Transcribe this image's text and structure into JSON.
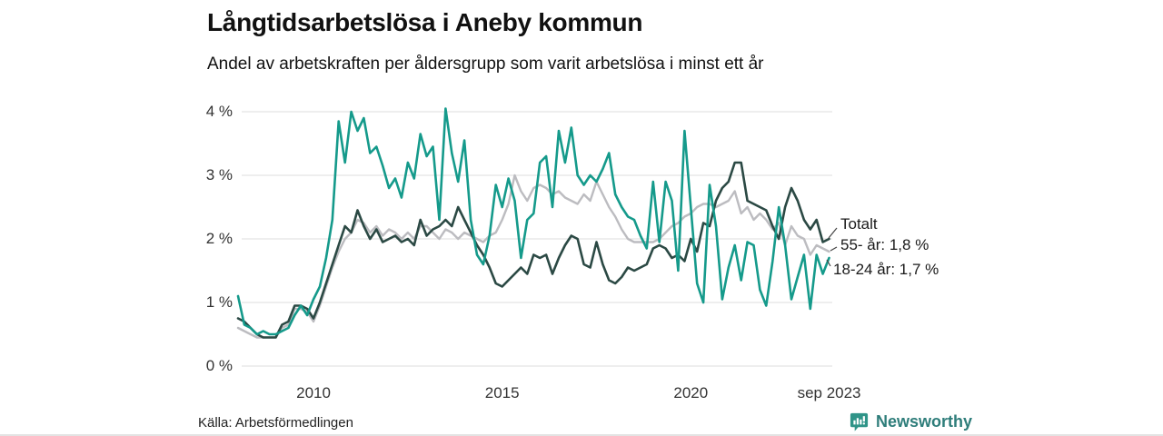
{
  "header": {
    "title": "Långtidsarbetslösa i Aneby kommun",
    "subtitle": "Andel av arbetskraften per åldersgrupp som varit arbetslösa i minst ett år"
  },
  "footer": {
    "source": "Källa: Arbetsförmedlingen",
    "brand": "Newsworthy",
    "brand_color": "#2e7d7a",
    "logo_icon": "bar-chart-speech-bubble-icon",
    "logo_icon_color": "#2f9488"
  },
  "chart_data": {
    "type": "line",
    "title": "Långtidsarbetslösa i Aneby kommun",
    "subtitle": "Andel av arbetskraften per åldersgrupp som varit arbetslösa i minst ett år",
    "grid": "horizontal",
    "legend_position": "right-end-labels",
    "gridline_color": "#dcdcdc",
    "x_axis": {
      "min": 2008,
      "max": 2023.75,
      "ticks": [
        {
          "label": "2010",
          "year": 2010
        },
        {
          "label": "2015",
          "year": 2015
        },
        {
          "label": "2020",
          "year": 2020
        },
        {
          "label": "sep 2023",
          "year": 2023.667
        }
      ]
    },
    "y_axis": {
      "min": 0,
      "max": 4,
      "unit": "%",
      "ticks": [
        {
          "label": "0 %",
          "value": 0
        },
        {
          "label": "1 %",
          "value": 1
        },
        {
          "label": "2 %",
          "value": 2
        },
        {
          "label": "3 %",
          "value": 3
        },
        {
          "label": "4 %",
          "value": 4
        }
      ]
    },
    "x_start": 2008.0,
    "x_step_years": 0.166667,
    "series": [
      {
        "name": "Totalt",
        "end_label": "Totalt",
        "end_value": 2.0,
        "color": "#2b4944",
        "values": [
          0.75,
          0.7,
          0.6,
          0.5,
          0.45,
          0.45,
          0.45,
          0.65,
          0.7,
          0.95,
          0.95,
          0.9,
          0.75,
          1.0,
          1.3,
          1.6,
          1.9,
          2.2,
          2.1,
          2.45,
          2.2,
          2.0,
          2.15,
          1.95,
          2.0,
          2.05,
          1.95,
          2.0,
          1.9,
          2.3,
          2.05,
          2.15,
          2.2,
          2.3,
          2.2,
          2.5,
          2.3,
          2.1,
          1.9,
          1.75,
          1.55,
          1.3,
          1.25,
          1.35,
          1.45,
          1.55,
          1.45,
          1.75,
          1.7,
          1.75,
          1.45,
          1.7,
          1.9,
          2.05,
          2.0,
          1.6,
          1.55,
          1.95,
          1.6,
          1.35,
          1.3,
          1.4,
          1.55,
          1.5,
          1.55,
          1.6,
          1.85,
          1.9,
          1.85,
          1.7,
          1.75,
          1.65,
          2.0,
          1.8,
          2.25,
          2.2,
          2.6,
          2.8,
          2.9,
          3.2,
          3.2,
          2.6,
          2.55,
          2.5,
          2.45,
          2.2,
          2.0,
          2.5,
          2.8,
          2.6,
          2.3,
          2.15,
          2.3,
          1.95,
          2.0
        ]
      },
      {
        "name": "55- år",
        "end_label": "55- år: 1,8 %",
        "end_value": 1.8,
        "color": "#bcbcc0",
        "values": [
          0.6,
          0.55,
          0.5,
          0.45,
          0.45,
          0.45,
          0.45,
          0.6,
          0.65,
          0.9,
          0.9,
          0.85,
          0.7,
          0.95,
          1.25,
          1.55,
          1.8,
          2.0,
          2.1,
          2.3,
          2.25,
          2.1,
          2.2,
          2.05,
          2.15,
          2.1,
          2.0,
          2.1,
          2.0,
          2.2,
          2.2,
          2.1,
          2.0,
          2.15,
          2.1,
          2.0,
          2.1,
          2.05,
          2.0,
          1.95,
          2.05,
          2.1,
          2.3,
          2.55,
          3.0,
          2.75,
          2.6,
          2.8,
          2.85,
          2.8,
          2.7,
          2.75,
          2.65,
          2.6,
          2.55,
          2.7,
          2.6,
          2.9,
          2.7,
          2.5,
          2.35,
          2.15,
          2.0,
          1.95,
          1.95,
          1.95,
          1.95,
          2.0,
          2.1,
          2.2,
          2.25,
          2.35,
          2.4,
          2.5,
          2.55,
          2.55,
          2.5,
          2.55,
          2.6,
          2.75,
          2.4,
          2.5,
          2.3,
          2.4,
          2.3,
          2.15,
          2.25,
          1.9,
          2.2,
          2.05,
          2.0,
          1.75,
          1.9,
          1.85,
          1.8
        ]
      },
      {
        "name": "18-24 år",
        "end_label": "18-24 år: 1,7 %",
        "end_value": 1.7,
        "color": "#159a8b",
        "values": [
          1.1,
          0.65,
          0.6,
          0.5,
          0.55,
          0.5,
          0.5,
          0.55,
          0.6,
          0.8,
          0.95,
          0.8,
          1.05,
          1.25,
          1.7,
          2.3,
          3.85,
          3.2,
          4.0,
          3.7,
          3.9,
          3.35,
          3.45,
          3.15,
          2.8,
          2.95,
          2.65,
          3.2,
          2.95,
          3.65,
          3.3,
          3.45,
          2.3,
          4.05,
          3.35,
          2.9,
          3.55,
          2.3,
          1.75,
          1.6,
          2.05,
          2.85,
          2.5,
          2.95,
          2.6,
          1.7,
          2.3,
          2.4,
          3.2,
          3.3,
          2.5,
          3.7,
          3.2,
          3.75,
          3.0,
          2.85,
          3.0,
          2.9,
          3.1,
          3.35,
          2.7,
          2.5,
          2.35,
          2.3,
          2.05,
          1.85,
          2.9,
          1.95,
          2.9,
          2.6,
          1.5,
          3.7,
          2.5,
          1.3,
          1.0,
          2.85,
          2.2,
          1.05,
          1.55,
          1.9,
          1.35,
          1.95,
          1.9,
          1.2,
          0.95,
          1.65,
          2.5,
          1.9,
          1.05,
          1.4,
          1.75,
          0.9,
          1.75,
          1.45,
          1.7
        ]
      }
    ]
  }
}
